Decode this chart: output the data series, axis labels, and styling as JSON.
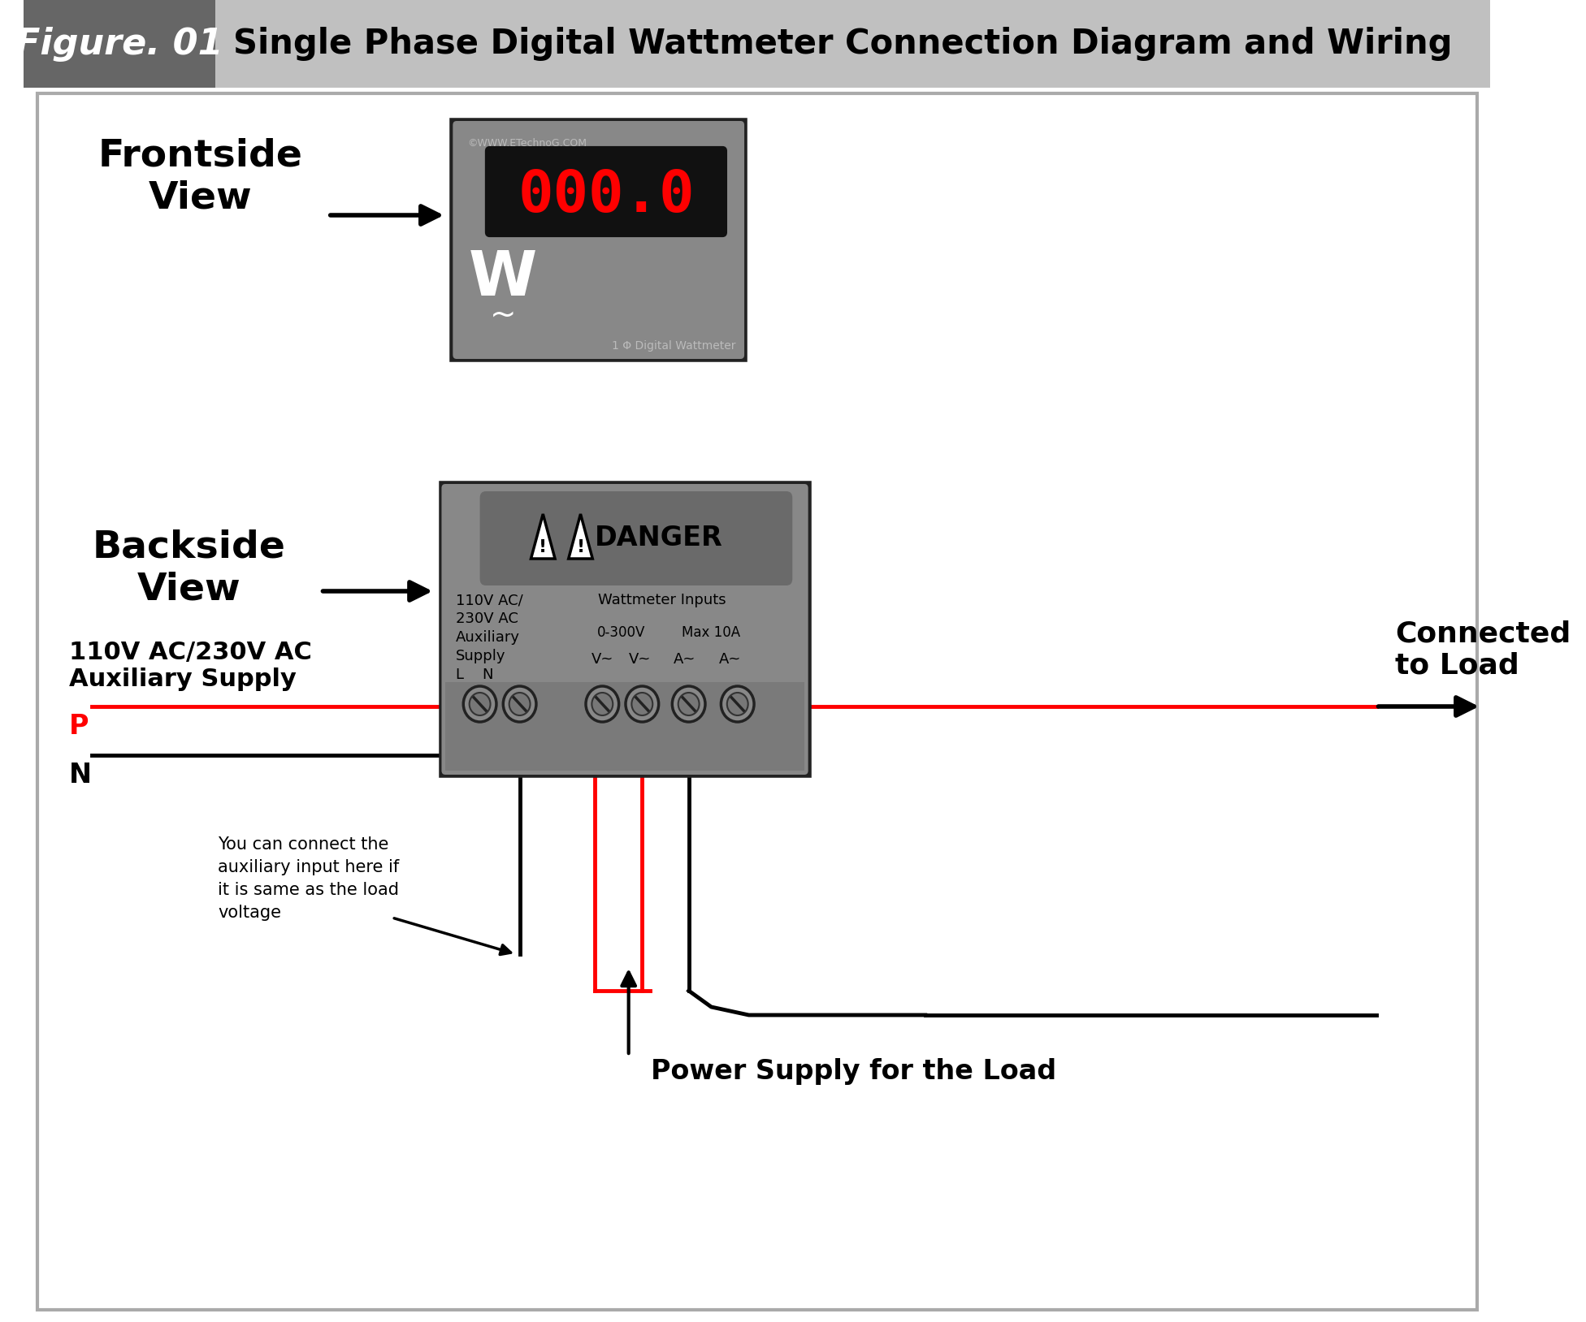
{
  "title": "Single Phase Digital Wattmeter Connection Diagram and Wiring",
  "figure_label": "Figure. 01",
  "bg_color": "#ffffff",
  "header_bg": "#c0c0c0",
  "header_dark": "#666666",
  "meter_face_color": "#8a8a8a",
  "meter_border_color": "#222222",
  "meter_inner_color": "#777777",
  "meter_display_bg": "#111111",
  "meter_display_text": "#ff0000",
  "meter_display_value": "000.0",
  "danger_panel_color": "#6a6a6a",
  "terminal_strip_color": "#7a7a7a",
  "frontside_label": "Frontside\nView",
  "backside_label": "Backside\nView",
  "aux_supply_label": "110V AC/230V AC\nAuxiliary Supply",
  "connected_load_label": "Connected\nto Load",
  "power_supply_label": "Power Supply for the Load",
  "aux_note": "You can connect the\nauxiliary input here if\nit is same as the load\nvoltage",
  "danger_text": "DANGER",
  "aux_back_label1": "110V AC/",
  "aux_back_label2": "230V AC",
  "aux_back_label3": "Auxiliary",
  "aux_back_label4": "Supply",
  "aux_back_label5": "L    N",
  "wattmeter_inputs": "Wattmeter Inputs",
  "voltage_range": "0-300V",
  "current_range": "Max 10A",
  "terminal_labels": [
    "L",
    "N",
    "V~",
    "V~",
    "A~",
    "A~"
  ],
  "wire_red": "#ff0000",
  "wire_black": "#000000",
  "copyright": "©WWW.ETechnoG.COM",
  "bottom_label": "1 Φ Digital Wattmeter"
}
